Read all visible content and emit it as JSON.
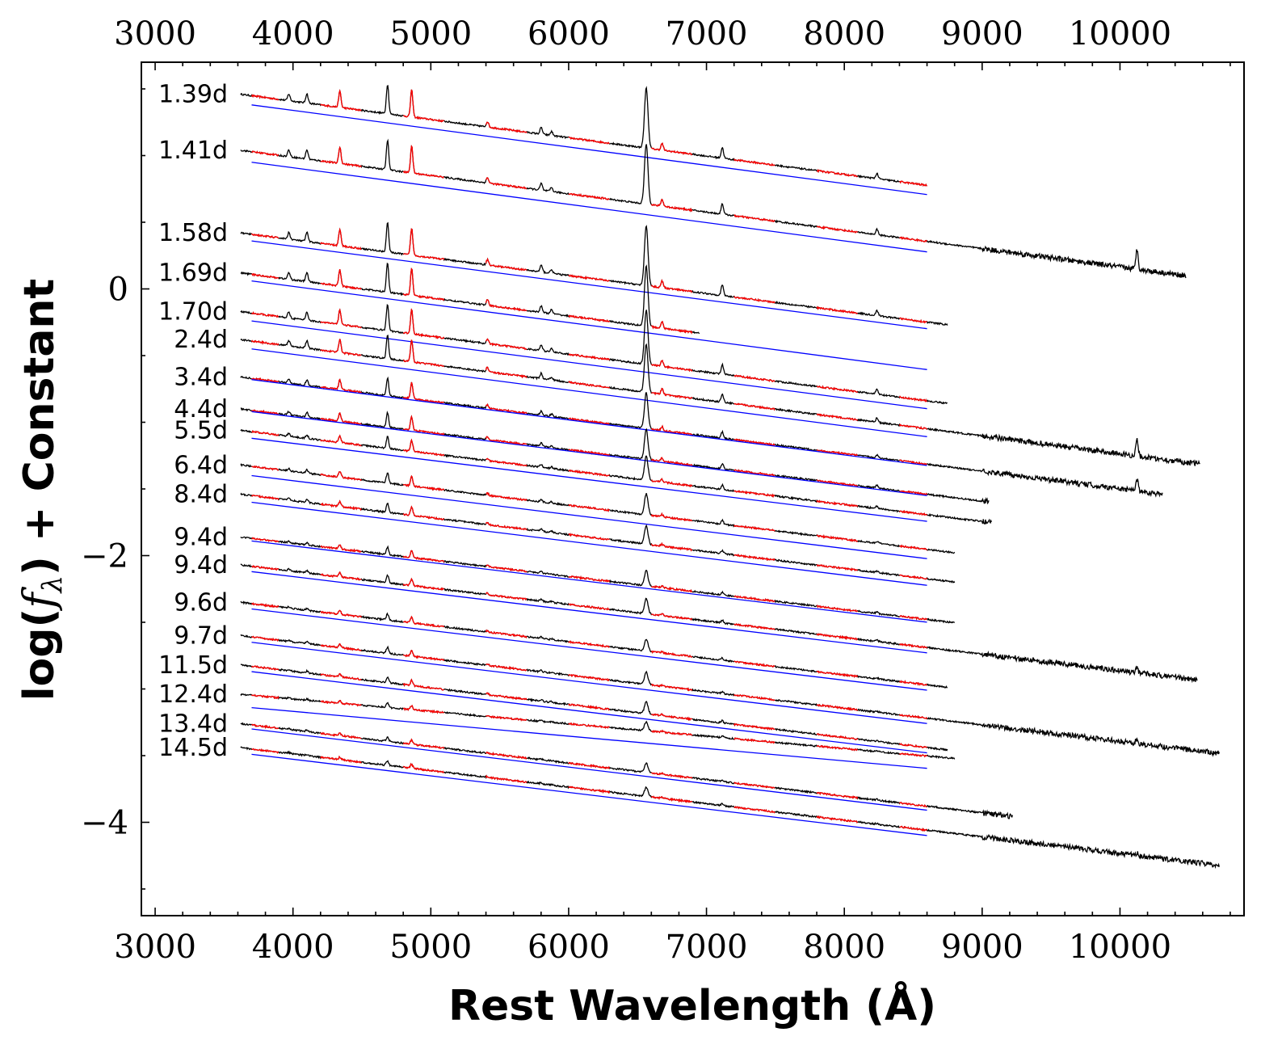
{
  "chart_data": {
    "type": "line",
    "xlabel": "Rest Wavelength (Å)",
    "ylabel": "log(f_λ) + Constant",
    "ylabel_parts": {
      "prefix": "log(",
      "symbol": "f",
      "subscript": "λ",
      "suffix": ") + Constant"
    },
    "xlim": [
      2900,
      10900
    ],
    "ylim": [
      -4.7,
      1.7
    ],
    "x_ticks": [
      3000,
      4000,
      5000,
      6000,
      7000,
      8000,
      9000,
      10000
    ],
    "x_tick_labels": [
      "3000",
      "4000",
      "5000",
      "6000",
      "7000",
      "8000",
      "9000",
      "10000"
    ],
    "y_ticks": [
      0,
      -2,
      -4
    ],
    "y_tick_labels": [
      "0",
      "−2",
      "−4"
    ],
    "legend": "none",
    "grid": false,
    "colors": {
      "observed": "#000000",
      "fit_region": "#ff0000",
      "blackbody_fit": "#0000ff"
    },
    "emission_lines": [
      3970,
      4101,
      4340,
      4686,
      4861,
      5411,
      5801,
      5876,
      6563,
      6678,
      7115,
      8237,
      10124
    ],
    "fit_range": [
      3700,
      8600
    ],
    "spectra": [
      {
        "epoch": "1.39d",
        "offset": 1.46,
        "fit_start": 1.38,
        "fit_slope": 0.1372,
        "x_end": 8600,
        "strength": 1.0
      },
      {
        "epoch": "1.41d",
        "offset": 1.04,
        "fit_start": 0.95,
        "fit_slope": 0.1372,
        "x_end": 10480,
        "strength": 1.0
      },
      {
        "epoch": "1.58d",
        "offset": 0.42,
        "fit_start": 0.36,
        "fit_slope": 0.1343,
        "x_end": 8750,
        "strength": 1.0
      },
      {
        "epoch": "1.69d",
        "offset": 0.12,
        "fit_start": 0.06,
        "fit_slope": 0.1357,
        "x_end": 6950,
        "strength": 1.0
      },
      {
        "epoch": "1.70d",
        "offset": -0.17,
        "fit_start": -0.24,
        "fit_slope": 0.1343,
        "x_end": 8750,
        "strength": 0.9
      },
      {
        "epoch": "2.4d",
        "offset": -0.38,
        "fit_start": -0.45,
        "fit_slope": 0.1343,
        "x_end": 10580,
        "strength": 0.8
      },
      {
        "epoch": "3.4d",
        "offset": -0.66,
        "fit_start": -0.68,
        "fit_slope": 0.1314,
        "x_end": 10310,
        "strength": 0.6
      },
      {
        "epoch": "4.4d",
        "offset": -0.9,
        "fit_start": -0.92,
        "fit_slope": 0.1285,
        "x_end": 9050,
        "strength": 0.5
      },
      {
        "epoch": "5.5d",
        "offset": -1.06,
        "fit_start": -1.12,
        "fit_slope": 0.1271,
        "x_end": 9070,
        "strength": 0.4
      },
      {
        "epoch": "6.4d",
        "offset": -1.32,
        "fit_start": -1.4,
        "fit_slope": 0.1271,
        "x_end": 8800,
        "strength": 0.35
      },
      {
        "epoch": "8.4d",
        "offset": -1.54,
        "fit_start": -1.6,
        "fit_slope": 0.1271,
        "x_end": 8800,
        "strength": 0.3
      },
      {
        "epoch": "9.4d",
        "offset": -1.86,
        "fit_start": -1.89,
        "fit_slope": 0.1243,
        "x_end": 8800,
        "strength": 0.25
      },
      {
        "epoch": "9.4d",
        "offset": -2.07,
        "fit_start": -2.12,
        "fit_slope": 0.1243,
        "x_end": 10560,
        "strength": 0.25
      },
      {
        "epoch": "9.6d",
        "offset": -2.35,
        "fit_start": -2.4,
        "fit_slope": 0.1243,
        "x_end": 8750,
        "strength": 0.2
      },
      {
        "epoch": "9.7d",
        "offset": -2.6,
        "fit_start": -2.65,
        "fit_slope": 0.1243,
        "x_end": 10720,
        "strength": 0.2
      },
      {
        "epoch": "11.5d",
        "offset": -2.82,
        "fit_start": -2.87,
        "fit_slope": 0.1243,
        "x_end": 8750,
        "strength": 0.2
      },
      {
        "epoch": "12.4d",
        "offset": -3.04,
        "fit_start": -3.14,
        "fit_slope": 0.0929,
        "x_end": 8800,
        "strength": 0.15
      },
      {
        "epoch": "13.4d",
        "offset": -3.26,
        "fit_start": -3.3,
        "fit_slope": 0.1243,
        "x_end": 9220,
        "strength": 0.15
      },
      {
        "epoch": "14.5d",
        "offset": -3.44,
        "fit_start": -3.49,
        "fit_slope": 0.1243,
        "x_end": 10720,
        "strength": 0.15
      }
    ]
  }
}
